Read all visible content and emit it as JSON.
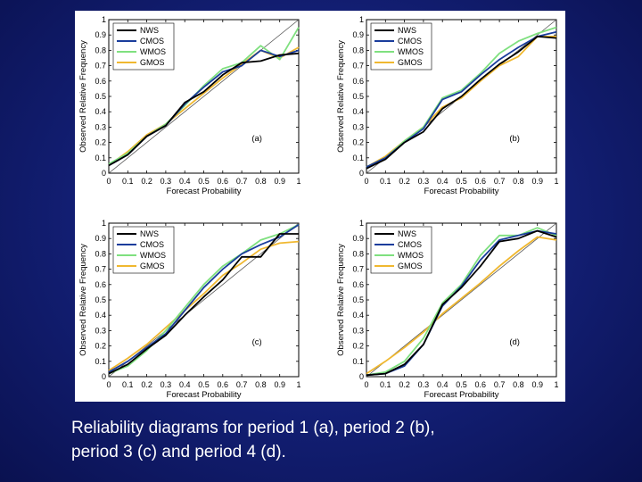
{
  "caption": {
    "line1": "Reliability diagrams for period 1 (a), period 2 (b),",
    "line2": "period 3 (c) and period 4 (d)."
  },
  "colors": {
    "background": "#14217a",
    "NWS": "#000000",
    "CMOS": "#1a3d9c",
    "WMOS": "#7fe07f",
    "GMOS": "#f0b830",
    "diagonal": "#555555"
  },
  "chart_data": [
    {
      "type": "line",
      "panel_label": "(a)",
      "xlabel": "Forecast Probability",
      "ylabel": "Observed Relative Frequency",
      "xlim": [
        0,
        1
      ],
      "ylim": [
        0,
        1
      ],
      "xticks": [
        "0",
        "0.1",
        "0.2",
        "0.3",
        "0.4",
        "0.5",
        "0.6",
        "0.7",
        "0.8",
        "0.9",
        "1"
      ],
      "yticks": [
        "0",
        "0.1",
        "0.2",
        "0.3",
        "0.4",
        "0.5",
        "0.6",
        "0.7",
        "0.8",
        "0.9",
        "1"
      ],
      "legend": "top-left",
      "x": [
        0.0,
        0.1,
        0.2,
        0.3,
        0.4,
        0.5,
        0.6,
        0.7,
        0.8,
        0.9,
        1.0
      ],
      "series": [
        {
          "name": "NWS",
          "values": [
            0.05,
            0.12,
            0.24,
            0.31,
            0.46,
            0.53,
            0.64,
            0.72,
            0.73,
            0.77,
            0.78
          ]
        },
        {
          "name": "CMOS",
          "values": [
            0.05,
            0.12,
            0.24,
            0.31,
            0.45,
            0.56,
            0.66,
            0.7,
            0.8,
            0.76,
            0.8
          ]
        },
        {
          "name": "WMOS",
          "values": [
            0.06,
            0.13,
            0.24,
            0.32,
            0.44,
            0.57,
            0.68,
            0.72,
            0.83,
            0.74,
            0.95
          ]
        },
        {
          "name": "GMOS",
          "values": [
            0.05,
            0.14,
            0.25,
            0.32,
            0.42,
            0.52,
            0.62,
            0.71,
            0.8,
            0.75,
            0.82
          ]
        }
      ]
    },
    {
      "type": "line",
      "panel_label": "(b)",
      "xlabel": "Forecast Probability",
      "ylabel": "Observed Relative Frequency",
      "xlim": [
        0,
        1
      ],
      "ylim": [
        0,
        1
      ],
      "xticks": [
        "0",
        "0.1",
        "0.2",
        "0.3",
        "0.4",
        "0.5",
        "0.6",
        "0.7",
        "0.8",
        "0.9",
        "1"
      ],
      "yticks": [
        "0",
        "0.1",
        "0.2",
        "0.3",
        "0.4",
        "0.5",
        "0.6",
        "0.7",
        "0.8",
        "0.9",
        "1"
      ],
      "legend": "top-left",
      "x": [
        0.0,
        0.1,
        0.2,
        0.3,
        0.4,
        0.5,
        0.6,
        0.7,
        0.8,
        0.9,
        1.0
      ],
      "series": [
        {
          "name": "NWS",
          "values": [
            0.03,
            0.09,
            0.2,
            0.27,
            0.42,
            0.5,
            0.61,
            0.71,
            0.79,
            0.89,
            0.88
          ]
        },
        {
          "name": "CMOS",
          "values": [
            0.04,
            0.1,
            0.2,
            0.29,
            0.48,
            0.53,
            0.64,
            0.74,
            0.82,
            0.89,
            0.92
          ]
        },
        {
          "name": "WMOS",
          "values": [
            0.04,
            0.1,
            0.21,
            0.3,
            0.49,
            0.54,
            0.65,
            0.78,
            0.86,
            0.91,
            0.95
          ]
        },
        {
          "name": "GMOS",
          "values": [
            0.04,
            0.11,
            0.21,
            0.3,
            0.43,
            0.49,
            0.6,
            0.7,
            0.76,
            0.89,
            0.89
          ]
        }
      ]
    },
    {
      "type": "line",
      "panel_label": "(c)",
      "xlabel": "Forecast Probability",
      "ylabel": "Observed Relative Frequency",
      "xlim": [
        0,
        1
      ],
      "ylim": [
        0,
        1
      ],
      "xticks": [
        "0",
        "0.1",
        "0.2",
        "0.3",
        "0.4",
        "0.5",
        "0.6",
        "0.7",
        "0.8",
        "0.9",
        "1"
      ],
      "yticks": [
        "0",
        "0.1",
        "0.2",
        "0.3",
        "0.4",
        "0.5",
        "0.6",
        "0.7",
        "0.8",
        "0.9",
        "1"
      ],
      "legend": "top-left",
      "x": [
        0.0,
        0.1,
        0.2,
        0.3,
        0.4,
        0.5,
        0.6,
        0.7,
        0.8,
        0.9,
        1.0
      ],
      "series": [
        {
          "name": "NWS",
          "values": [
            0.02,
            0.08,
            0.18,
            0.27,
            0.4,
            0.52,
            0.63,
            0.78,
            0.78,
            0.93,
            0.93
          ]
        },
        {
          "name": "CMOS",
          "values": [
            0.03,
            0.1,
            0.19,
            0.28,
            0.43,
            0.58,
            0.7,
            0.8,
            0.86,
            0.91,
            0.99
          ]
        },
        {
          "name": "WMOS",
          "values": [
            0.02,
            0.07,
            0.17,
            0.3,
            0.45,
            0.6,
            0.72,
            0.8,
            0.89,
            0.93,
            0.99
          ]
        },
        {
          "name": "GMOS",
          "values": [
            0.04,
            0.12,
            0.21,
            0.32,
            0.43,
            0.54,
            0.66,
            0.74,
            0.83,
            0.87,
            0.88
          ]
        }
      ]
    },
    {
      "type": "line",
      "panel_label": "(d)",
      "xlabel": "Forecast Probability",
      "ylabel": "Observed Relative Frequency",
      "xlim": [
        0,
        1
      ],
      "ylim": [
        0,
        1
      ],
      "xticks": [
        "0",
        "0.1",
        "0.2",
        "0.3",
        "0.4",
        "0.5",
        "0.6",
        "0.7",
        "0.8",
        "0.9",
        "1"
      ],
      "yticks": [
        "0",
        "0.1",
        "0.2",
        "0.3",
        "0.4",
        "0.5",
        "0.6",
        "0.7",
        "0.8",
        "0.9",
        "1"
      ],
      "legend": "top-left",
      "x": [
        0.0,
        0.1,
        0.2,
        0.3,
        0.4,
        0.5,
        0.6,
        0.7,
        0.8,
        0.9,
        1.0
      ],
      "series": [
        {
          "name": "NWS",
          "values": [
            0.01,
            0.02,
            0.08,
            0.21,
            0.47,
            0.58,
            0.72,
            0.88,
            0.9,
            0.95,
            0.91
          ]
        },
        {
          "name": "CMOS",
          "values": [
            0.01,
            0.02,
            0.07,
            0.21,
            0.46,
            0.59,
            0.76,
            0.89,
            0.92,
            0.95,
            0.93
          ]
        },
        {
          "name": "WMOS",
          "values": [
            0.01,
            0.03,
            0.1,
            0.25,
            0.48,
            0.6,
            0.79,
            0.92,
            0.92,
            0.97,
            0.92
          ]
        },
        {
          "name": "GMOS",
          "values": [
            0.02,
            0.1,
            0.19,
            0.29,
            0.41,
            0.51,
            0.61,
            0.72,
            0.82,
            0.91,
            0.89
          ]
        }
      ]
    }
  ]
}
